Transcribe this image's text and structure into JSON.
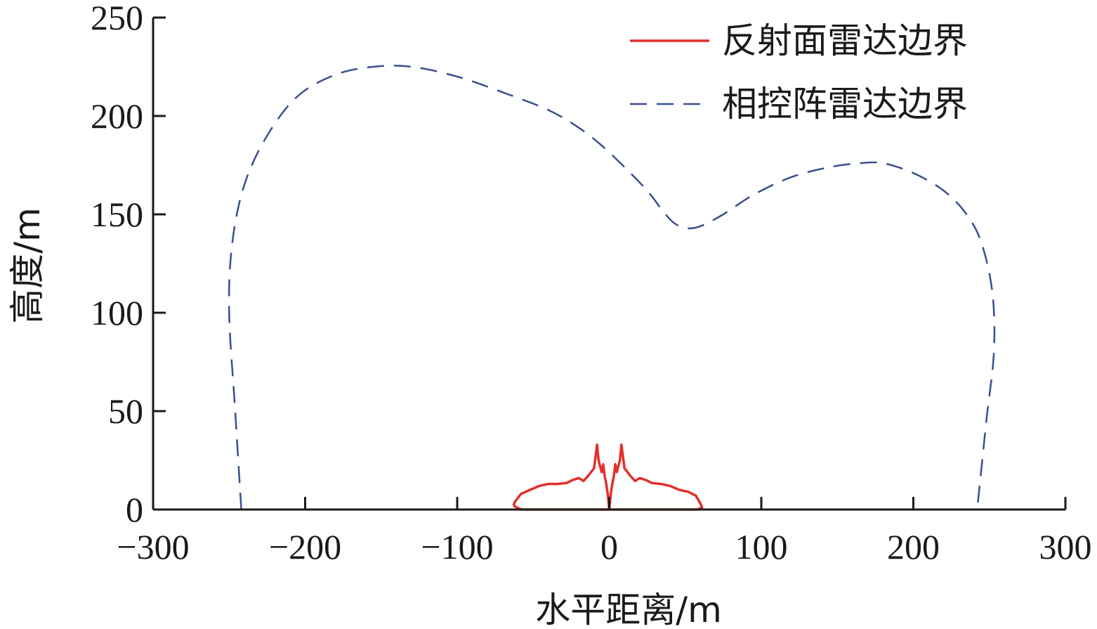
{
  "chart_data": {
    "type": "line",
    "xlabel": "水平距离/m",
    "ylabel": "高度/m",
    "xlim": [
      -300,
      300
    ],
    "ylim": [
      0,
      250
    ],
    "x_ticks": [
      -300,
      -200,
      -100,
      0,
      100,
      200,
      300
    ],
    "y_ticks": [
      0,
      50,
      100,
      150,
      200,
      250
    ],
    "x_tick_labels": [
      "−300",
      "−200",
      "−100",
      "0",
      "100",
      "200",
      "300"
    ],
    "y_tick_labels": [
      "0",
      "50",
      "100",
      "150",
      "200",
      "250"
    ],
    "grid": false,
    "legend_position": "top-right",
    "series": [
      {
        "name": "反射面雷达边界",
        "color": "#e2302a",
        "style": "solid",
        "points": [
          [
            -63,
            2
          ],
          [
            -62,
            4
          ],
          [
            -58,
            8
          ],
          [
            -52,
            10
          ],
          [
            -46,
            12
          ],
          [
            -40,
            13
          ],
          [
            -34,
            13
          ],
          [
            -28,
            13.5
          ],
          [
            -24,
            15
          ],
          [
            -20,
            16
          ],
          [
            -17,
            14.5
          ],
          [
            -14,
            17
          ],
          [
            -12,
            19
          ],
          [
            -10,
            21
          ],
          [
            -9,
            27
          ],
          [
            -8,
            33
          ],
          [
            -7,
            25
          ],
          [
            -6,
            22
          ],
          [
            -5,
            19
          ],
          [
            -4,
            23
          ],
          [
            -3,
            17
          ],
          [
            -2,
            13
          ],
          [
            -1,
            8
          ],
          [
            0,
            0
          ],
          [
            1,
            8
          ],
          [
            2,
            13
          ],
          [
            3,
            17
          ],
          [
            4,
            23
          ],
          [
            5,
            19
          ],
          [
            6,
            22
          ],
          [
            7,
            25
          ],
          [
            8,
            33
          ],
          [
            9,
            27
          ],
          [
            10,
            21
          ],
          [
            12,
            19
          ],
          [
            14,
            17
          ],
          [
            17,
            14.5
          ],
          [
            20,
            16
          ],
          [
            24,
            15
          ],
          [
            28,
            13.5
          ],
          [
            34,
            13
          ],
          [
            40,
            12
          ],
          [
            46,
            10
          ],
          [
            52,
            9
          ],
          [
            57,
            7
          ],
          [
            60,
            3
          ],
          [
            61,
            1
          ],
          [
            58,
            0
          ],
          [
            -58,
            0
          ],
          [
            -63,
            2
          ]
        ]
      },
      {
        "name": "相控阵雷达边界",
        "color": "#3a4f8f",
        "style": "dashed",
        "points": [
          [
            -242,
            0
          ],
          [
            -246,
            50
          ],
          [
            -250,
            100
          ],
          [
            -248,
            135
          ],
          [
            -240,
            165
          ],
          [
            -225,
            190
          ],
          [
            -205,
            210
          ],
          [
            -180,
            221
          ],
          [
            -155,
            225
          ],
          [
            -130,
            225
          ],
          [
            -100,
            220
          ],
          [
            -70,
            212
          ],
          [
            -40,
            203
          ],
          [
            -20,
            194
          ],
          [
            -5,
            185
          ],
          [
            10,
            174
          ],
          [
            25,
            162
          ],
          [
            35,
            152
          ],
          [
            42,
            146
          ],
          [
            50,
            143
          ],
          [
            60,
            144
          ],
          [
            75,
            150
          ],
          [
            95,
            160
          ],
          [
            120,
            169
          ],
          [
            145,
            174
          ],
          [
            165,
            176
          ],
          [
            180,
            176
          ],
          [
            200,
            171
          ],
          [
            220,
            162
          ],
          [
            235,
            150
          ],
          [
            245,
            135
          ],
          [
            252,
            110
          ],
          [
            253,
            80
          ],
          [
            248,
            45
          ],
          [
            242,
            0
          ]
        ]
      }
    ]
  }
}
